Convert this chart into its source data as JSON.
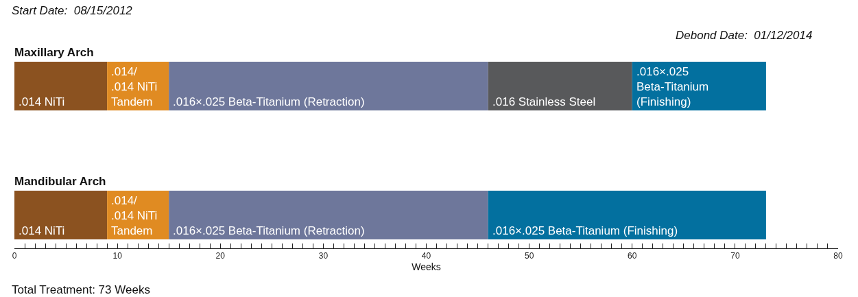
{
  "chart_data": {
    "type": "bar",
    "orientation": "horizontal",
    "stacked": true,
    "legend": false,
    "grid": false,
    "categories": [
      "Maxillary Arch",
      "Mandibular Arch"
    ],
    "series": [
      {
        "name": ".014 NiTi",
        "color": "#8b5220",
        "values": [
          9,
          9
        ]
      },
      {
        "name": ".014/.014 NiTi Tandem",
        "color": "#e08b22",
        "values": [
          6,
          6
        ]
      },
      {
        "name": ".016×.025 Beta-Titanium (Retraction)",
        "color": "#6e779b",
        "values": [
          31,
          31
        ]
      },
      {
        "name": ".016 Stainless Steel",
        "color": "#58595b",
        "values": [
          14,
          null
        ]
      },
      {
        "name": ".016×.025 Beta-Titanium (Finishing)",
        "color": "#03709f",
        "values": [
          13,
          27
        ]
      }
    ],
    "xlabel": "Weeks",
    "xlim": [
      0,
      80
    ],
    "xticks": [
      0,
      {
        "value": 1,
        "label": null
      },
      {
        "value": 2,
        "label": null
      },
      {
        "value": 3,
        "label": null
      },
      {
        "value": 4,
        "label": null
      },
      {
        "value": 5,
        "label": null
      },
      {
        "value": 6,
        "label": null
      },
      {
        "value": 7,
        "label": null
      },
      {
        "value": 8,
        "label": null
      },
      {
        "value": 9,
        "label": null
      },
      10,
      {
        "value": 11,
        "label": null
      },
      {
        "value": 12,
        "label": null
      },
      {
        "value": 13,
        "label": null
      },
      {
        "value": 14,
        "label": null
      },
      {
        "value": 15,
        "label": null
      },
      {
        "value": 16,
        "label": null
      },
      {
        "value": 17,
        "label": null
      },
      {
        "value": 18,
        "label": null
      },
      {
        "value": 19,
        "label": null
      },
      20,
      {
        "value": 21,
        "label": null
      },
      {
        "value": 22,
        "label": null
      },
      {
        "value": 23,
        "label": null
      },
      {
        "value": 24,
        "label": null
      },
      {
        "value": 25,
        "label": null
      },
      {
        "value": 26,
        "label": null
      },
      {
        "value": 27,
        "label": null
      },
      {
        "value": 28,
        "label": null
      },
      {
        "value": 29,
        "label": null
      },
      30,
      {
        "value": 31,
        "label": null
      },
      {
        "value": 32,
        "label": null
      },
      {
        "value": 33,
        "label": null
      },
      {
        "value": 34,
        "label": null
      },
      {
        "value": 35,
        "label": null
      },
      {
        "value": 36,
        "label": null
      },
      {
        "value": 37,
        "label": null
      },
      {
        "value": 38,
        "label": null
      },
      {
        "value": 39,
        "label": null
      },
      40,
      {
        "value": 41,
        "label": null
      },
      {
        "value": 42,
        "label": null
      },
      {
        "value": 43,
        "label": null
      },
      {
        "value": 44,
        "label": null
      },
      {
        "value": 45,
        "label": null
      },
      {
        "value": 46,
        "label": null
      },
      {
        "value": 47,
        "label": null
      },
      {
        "value": 48,
        "label": null
      },
      {
        "value": 49,
        "label": null
      },
      50,
      {
        "value": 51,
        "label": null
      },
      {
        "value": 52,
        "label": null
      },
      {
        "value": 53,
        "label": null
      },
      {
        "value": 54,
        "label": null
      },
      {
        "value": 55,
        "label": null
      },
      {
        "value": 56,
        "label": null
      },
      {
        "value": 57,
        "label": null
      },
      {
        "value": 58,
        "label": null
      },
      {
        "value": 59,
        "label": null
      },
      60,
      {
        "value": 61,
        "label": null
      },
      {
        "value": 62,
        "label": null
      },
      {
        "value": 63,
        "label": null
      },
      {
        "value": 64,
        "label": null
      },
      {
        "value": 65,
        "label": null
      },
      {
        "value": 66,
        "label": null
      },
      {
        "value": 67,
        "label": null
      },
      {
        "value": 68,
        "label": null
      },
      {
        "value": 69,
        "label": null
      },
      70,
      {
        "value": 71,
        "label": null
      },
      {
        "value": 72,
        "label": null
      },
      {
        "value": 73,
        "label": null
      },
      {
        "value": 74,
        "label": null
      },
      {
        "value": 75,
        "label": null
      },
      {
        "value": 76,
        "label": null
      },
      {
        "value": 77,
        "label": null
      },
      {
        "value": 78,
        "label": null
      },
      {
        "value": 79,
        "label": null
      },
      80
    ],
    "annotations": [
      "Start Date:  08/15/2012",
      "Debond Date:  01/12/2014",
      "Total Treatment: 73 Weeks"
    ]
  }
}
